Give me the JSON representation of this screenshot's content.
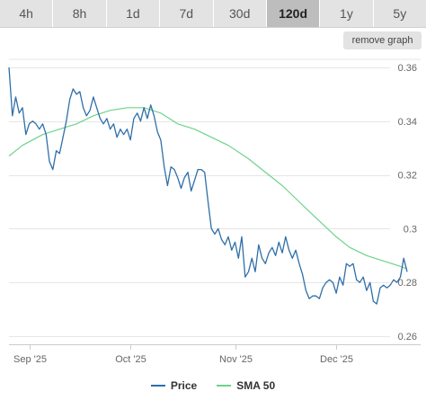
{
  "tabs": [
    {
      "label": "4h",
      "active": false
    },
    {
      "label": "8h",
      "active": false
    },
    {
      "label": "1d",
      "active": false
    },
    {
      "label": "7d",
      "active": false
    },
    {
      "label": "30d",
      "active": false
    },
    {
      "label": "120d",
      "active": true
    },
    {
      "label": "1y",
      "active": false
    },
    {
      "label": "5y",
      "active": false
    }
  ],
  "remove_graph_label": "remove graph",
  "legend": [
    {
      "label": "Price",
      "color": "#2f6fa8"
    },
    {
      "label": "SMA 50",
      "color": "#6ed38a"
    }
  ],
  "colors": {
    "grid": "#e6e6e6",
    "axis_text": "#666666"
  },
  "chart_data": {
    "type": "line",
    "ylim": [
      0.257,
      0.365
    ],
    "yticks": [
      0.26,
      0.28,
      0.3,
      0.32,
      0.34,
      0.36
    ],
    "ytick_labels": [
      "0.26",
      "0.28",
      "0.3",
      "0.32",
      "0.34",
      "0.36"
    ],
    "xlim": [
      "2025-08-26",
      "2025-12-26"
    ],
    "xticks": [
      {
        "date": "2025-09-01",
        "label": "Sep '25"
      },
      {
        "date": "2025-10-01",
        "label": "Oct '25"
      },
      {
        "date": "2025-11-01",
        "label": "Nov '25"
      },
      {
        "date": "2025-12-01",
        "label": "Dec '25"
      }
    ],
    "series": [
      {
        "name": "Price",
        "color": "#2f6fa8",
        "points": [
          [
            "2025-08-26",
            0.36
          ],
          [
            "2025-08-27",
            0.342
          ],
          [
            "2025-08-28",
            0.349
          ],
          [
            "2025-08-29",
            0.343
          ],
          [
            "2025-08-30",
            0.345
          ],
          [
            "2025-08-31",
            0.335
          ],
          [
            "2025-09-01",
            0.339
          ],
          [
            "2025-09-02",
            0.34
          ],
          [
            "2025-09-03",
            0.339
          ],
          [
            "2025-09-04",
            0.337
          ],
          [
            "2025-09-05",
            0.339
          ],
          [
            "2025-09-06",
            0.335
          ],
          [
            "2025-09-07",
            0.325
          ],
          [
            "2025-09-08",
            0.322
          ],
          [
            "2025-09-09",
            0.329
          ],
          [
            "2025-09-10",
            0.328
          ],
          [
            "2025-09-11",
            0.334
          ],
          [
            "2025-09-12",
            0.34
          ],
          [
            "2025-09-13",
            0.348
          ],
          [
            "2025-09-14",
            0.352
          ],
          [
            "2025-09-15",
            0.35
          ],
          [
            "2025-09-16",
            0.351
          ],
          [
            "2025-09-17",
            0.345
          ],
          [
            "2025-09-18",
            0.342
          ],
          [
            "2025-09-19",
            0.344
          ],
          [
            "2025-09-20",
            0.349
          ],
          [
            "2025-09-21",
            0.345
          ],
          [
            "2025-09-22",
            0.341
          ],
          [
            "2025-09-23",
            0.339
          ],
          [
            "2025-09-24",
            0.341
          ],
          [
            "2025-09-25",
            0.337
          ],
          [
            "2025-09-26",
            0.339
          ],
          [
            "2025-09-27",
            0.334
          ],
          [
            "2025-09-28",
            0.337
          ],
          [
            "2025-09-29",
            0.335
          ],
          [
            "2025-09-30",
            0.337
          ],
          [
            "2025-10-01",
            0.333
          ],
          [
            "2025-10-02",
            0.341
          ],
          [
            "2025-10-03",
            0.343
          ],
          [
            "2025-10-04",
            0.34
          ],
          [
            "2025-10-05",
            0.345
          ],
          [
            "2025-10-06",
            0.341
          ],
          [
            "2025-10-07",
            0.346
          ],
          [
            "2025-10-08",
            0.342
          ],
          [
            "2025-10-09",
            0.336
          ],
          [
            "2025-10-10",
            0.333
          ],
          [
            "2025-10-11",
            0.323
          ],
          [
            "2025-10-12",
            0.316
          ],
          [
            "2025-10-13",
            0.323
          ],
          [
            "2025-10-14",
            0.322
          ],
          [
            "2025-10-15",
            0.319
          ],
          [
            "2025-10-16",
            0.315
          ],
          [
            "2025-10-17",
            0.319
          ],
          [
            "2025-10-18",
            0.321
          ],
          [
            "2025-10-19",
            0.314
          ],
          [
            "2025-10-20",
            0.318
          ],
          [
            "2025-10-21",
            0.322
          ],
          [
            "2025-10-22",
            0.322
          ],
          [
            "2025-10-23",
            0.321
          ],
          [
            "2025-10-24",
            0.31
          ],
          [
            "2025-10-25",
            0.3
          ],
          [
            "2025-10-26",
            0.298
          ],
          [
            "2025-10-27",
            0.3
          ],
          [
            "2025-10-28",
            0.296
          ],
          [
            "2025-10-29",
            0.294
          ],
          [
            "2025-10-30",
            0.297
          ],
          [
            "2025-10-31",
            0.292
          ],
          [
            "2025-11-01",
            0.295
          ],
          [
            "2025-11-02",
            0.289
          ],
          [
            "2025-11-03",
            0.297
          ],
          [
            "2025-11-04",
            0.282
          ],
          [
            "2025-11-05",
            0.284
          ],
          [
            "2025-11-06",
            0.289
          ],
          [
            "2025-11-07",
            0.284
          ],
          [
            "2025-11-08",
            0.294
          ],
          [
            "2025-11-09",
            0.289
          ],
          [
            "2025-11-10",
            0.287
          ],
          [
            "2025-11-11",
            0.291
          ],
          [
            "2025-11-12",
            0.293
          ],
          [
            "2025-11-13",
            0.29
          ],
          [
            "2025-11-14",
            0.295
          ],
          [
            "2025-11-15",
            0.291
          ],
          [
            "2025-11-16",
            0.297
          ],
          [
            "2025-11-17",
            0.292
          ],
          [
            "2025-11-18",
            0.289
          ],
          [
            "2025-11-19",
            0.292
          ],
          [
            "2025-11-20",
            0.287
          ],
          [
            "2025-11-21",
            0.283
          ],
          [
            "2025-11-22",
            0.277
          ],
          [
            "2025-11-23",
            0.274
          ],
          [
            "2025-11-24",
            0.275
          ],
          [
            "2025-11-25",
            0.275
          ],
          [
            "2025-11-26",
            0.274
          ],
          [
            "2025-11-27",
            0.278
          ],
          [
            "2025-11-28",
            0.28
          ],
          [
            "2025-11-29",
            0.281
          ],
          [
            "2025-11-30",
            0.28
          ],
          [
            "2025-12-01",
            0.276
          ],
          [
            "2025-12-02",
            0.282
          ],
          [
            "2025-12-03",
            0.279
          ],
          [
            "2025-12-04",
            0.287
          ],
          [
            "2025-12-05",
            0.286
          ],
          [
            "2025-12-06",
            0.287
          ],
          [
            "2025-12-07",
            0.281
          ],
          [
            "2025-12-08",
            0.28
          ],
          [
            "2025-12-09",
            0.282
          ],
          [
            "2025-12-10",
            0.277
          ],
          [
            "2025-12-11",
            0.28
          ],
          [
            "2025-12-12",
            0.273
          ],
          [
            "2025-12-13",
            0.272
          ],
          [
            "2025-12-14",
            0.278
          ],
          [
            "2025-12-15",
            0.279
          ],
          [
            "2025-12-16",
            0.278
          ],
          [
            "2025-12-17",
            0.279
          ],
          [
            "2025-12-18",
            0.281
          ],
          [
            "2025-12-19",
            0.28
          ],
          [
            "2025-12-20",
            0.282
          ],
          [
            "2025-12-21",
            0.289
          ],
          [
            "2025-12-22",
            0.284
          ]
        ]
      },
      {
        "name": "SMA 50",
        "color": "#6ed38a",
        "points": [
          [
            "2025-08-26",
            0.327
          ],
          [
            "2025-08-30",
            0.331
          ],
          [
            "2025-09-05",
            0.335
          ],
          [
            "2025-09-10",
            0.337
          ],
          [
            "2025-09-15",
            0.339
          ],
          [
            "2025-09-20",
            0.342
          ],
          [
            "2025-09-25",
            0.344
          ],
          [
            "2025-09-30",
            0.345
          ],
          [
            "2025-10-05",
            0.345
          ],
          [
            "2025-10-10",
            0.343
          ],
          [
            "2025-10-15",
            0.339
          ],
          [
            "2025-10-20",
            0.337
          ],
          [
            "2025-10-25",
            0.334
          ],
          [
            "2025-10-30",
            0.331
          ],
          [
            "2025-11-05",
            0.326
          ],
          [
            "2025-11-10",
            0.321
          ],
          [
            "2025-11-15",
            0.316
          ],
          [
            "2025-11-20",
            0.31
          ],
          [
            "2025-11-25",
            0.304
          ],
          [
            "2025-12-01",
            0.297
          ],
          [
            "2025-12-05",
            0.293
          ],
          [
            "2025-12-10",
            0.29
          ],
          [
            "2025-12-15",
            0.288
          ],
          [
            "2025-12-20",
            0.286
          ],
          [
            "2025-12-22",
            0.285
          ]
        ]
      }
    ]
  }
}
